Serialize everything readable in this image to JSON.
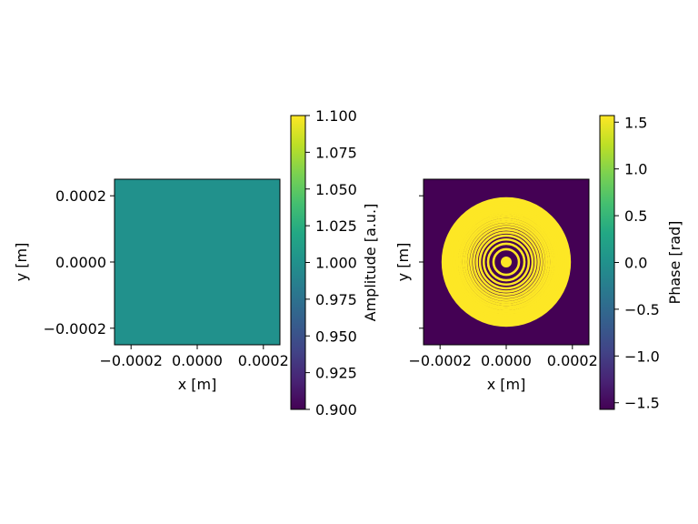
{
  "chart_data": [
    {
      "type": "heatmap",
      "quantity": "amplitude",
      "xlabel": "x [m]",
      "ylabel": "y [m]",
      "xlim": [
        -0.00025,
        0.00025
      ],
      "ylim": [
        -0.00025,
        0.00025
      ],
      "xticks": [
        -0.0002,
        0.0,
        0.0002
      ],
      "xtick_labels": [
        "−0.0002",
        "0.0000",
        "0.0002"
      ],
      "yticks": [
        -0.0002,
        0.0,
        0.0002
      ],
      "ytick_labels": [
        "−0.0002",
        "0.0000",
        "0.0002"
      ],
      "uniform_value": 1.0,
      "uniform_color": "#21918c",
      "colorbar": {
        "label": "Amplitude [a.u.]",
        "range": [
          0.9,
          1.1
        ],
        "ticks": [
          0.9,
          0.925,
          0.95,
          0.975,
          1.0,
          1.025,
          1.05,
          1.075,
          1.1
        ],
        "tick_labels": [
          "0.900",
          "0.925",
          "0.950",
          "0.975",
          "1.000",
          "1.025",
          "1.050",
          "1.075",
          "1.100"
        ],
        "colormap": "viridis"
      }
    },
    {
      "type": "heatmap",
      "quantity": "phase",
      "xlabel": "x [m]",
      "ylabel": "y [m]",
      "xlim": [
        -0.00025,
        0.00025
      ],
      "ylim": [
        -0.00025,
        0.00025
      ],
      "xticks": [
        -0.0002,
        0.0,
        0.0002
      ],
      "xtick_labels": [
        "−0.0002",
        "0.0000",
        "0.0002"
      ],
      "yticks": [
        -0.0002,
        0.0,
        0.0002
      ],
      "ytick_labels": [],
      "binary_values": [
        -1.5708,
        1.5708
      ],
      "low_color": "#440154",
      "high_color": "#fde725",
      "central_disk_radius": 1.65e-05,
      "ring_radii": [
        3.85e-05,
        5.5e-05,
        6.8e-05,
        7.95e-05,
        8.9e-05,
        9.8e-05,
        0.0001065,
        0.0001145,
        0.000122,
        0.000129,
        0.000136,
        0.0001425,
        0.000149,
        0.000155,
        0.000161,
        0.0001665,
        0.000172,
        0.000177,
        0.000182,
        0.000187,
        0.000192
      ],
      "colorbar": {
        "label": "Phase [rad]",
        "range": [
          -1.5708,
          1.5708
        ],
        "ticks": [
          -1.5,
          -1.0,
          -0.5,
          0.0,
          0.5,
          1.0,
          1.5
        ],
        "tick_labels": [
          "−1.5",
          "−1.0",
          "−0.5",
          "0.0",
          "0.5",
          "1.0",
          "1.5"
        ],
        "colormap": "viridis"
      }
    }
  ]
}
